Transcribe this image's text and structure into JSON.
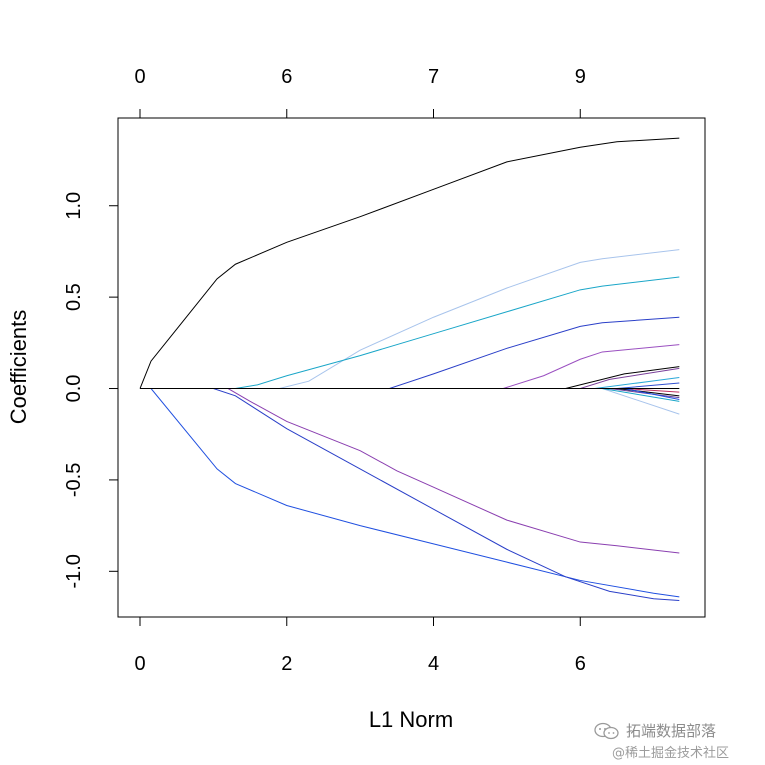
{
  "chart_data": {
    "type": "line",
    "title": "",
    "xlabel": "L1 Norm",
    "ylabel": "Coefficients",
    "xlim": [
      -0.3,
      7.7
    ],
    "ylim": [
      -1.25,
      1.48
    ],
    "x_ticks": [
      0,
      2,
      4,
      6
    ],
    "x_tick_labels": [
      "0",
      "2",
      "4",
      "6"
    ],
    "y_ticks": [
      -1.0,
      -0.5,
      0.0,
      0.5,
      1.0
    ],
    "y_tick_labels": [
      "-1.0",
      "-0.5",
      "0.0",
      "0.5",
      "1.0"
    ],
    "top_axis_ticks": [
      0,
      2,
      4,
      6
    ],
    "top_axis_labels": [
      "0",
      "6",
      "7",
      "9"
    ],
    "grid": false,
    "legend": "none",
    "series": [
      {
        "color": "#000000",
        "points": [
          [
            0,
            0
          ],
          [
            0.15,
            0.15
          ],
          [
            0.55,
            0.35
          ],
          [
            1.05,
            0.6
          ],
          [
            1.3,
            0.68
          ],
          [
            2.0,
            0.8
          ],
          [
            3.0,
            0.94
          ],
          [
            4.0,
            1.09
          ],
          [
            5.0,
            1.24
          ],
          [
            6.0,
            1.32
          ],
          [
            6.5,
            1.35
          ],
          [
            7.35,
            1.37
          ]
        ]
      },
      {
        "color": "#2050e0",
        "points": [
          [
            0,
            0
          ],
          [
            0.15,
            0
          ],
          [
            1.05,
            -0.44
          ],
          [
            1.3,
            -0.52
          ],
          [
            2.0,
            -0.64
          ],
          [
            3.0,
            -0.75
          ],
          [
            4.0,
            -0.85
          ],
          [
            5.0,
            -0.95
          ],
          [
            6.0,
            -1.05
          ],
          [
            7.0,
            -1.12
          ],
          [
            7.35,
            -1.14
          ]
        ]
      },
      {
        "color": "#2a3fc8",
        "points": [
          [
            0,
            0
          ],
          [
            1.0,
            0
          ],
          [
            1.3,
            -0.04
          ],
          [
            2.0,
            -0.22
          ],
          [
            3.0,
            -0.44
          ],
          [
            4.0,
            -0.66
          ],
          [
            5.0,
            -0.88
          ],
          [
            5.8,
            -1.03
          ],
          [
            6.4,
            -1.11
          ],
          [
            7.0,
            -1.15
          ],
          [
            7.35,
            -1.16
          ]
        ]
      },
      {
        "color": "#8a3fb0",
        "points": [
          [
            0,
            0
          ],
          [
            1.2,
            0
          ],
          [
            1.5,
            -0.07
          ],
          [
            2.0,
            -0.18
          ],
          [
            3.0,
            -0.34
          ],
          [
            3.5,
            -0.45
          ],
          [
            4.0,
            -0.54
          ],
          [
            5.0,
            -0.72
          ],
          [
            6.0,
            -0.84
          ],
          [
            6.5,
            -0.86
          ],
          [
            7.35,
            -0.9
          ]
        ]
      },
      {
        "color": "#a8c4ec",
        "points": [
          [
            0,
            0
          ],
          [
            1.9,
            0
          ],
          [
            2.3,
            0.04
          ],
          [
            3.0,
            0.21
          ],
          [
            4.0,
            0.39
          ],
          [
            5.0,
            0.55
          ],
          [
            6.0,
            0.69
          ],
          [
            6.3,
            0.71
          ],
          [
            7.35,
            0.76
          ]
        ]
      },
      {
        "color": "#1aa6c8",
        "points": [
          [
            0,
            0
          ],
          [
            1.3,
            0
          ],
          [
            1.6,
            0.02
          ],
          [
            2.0,
            0.07
          ],
          [
            3.0,
            0.18
          ],
          [
            4.0,
            0.3
          ],
          [
            5.0,
            0.42
          ],
          [
            6.0,
            0.54
          ],
          [
            6.3,
            0.56
          ],
          [
            7.35,
            0.61
          ]
        ]
      },
      {
        "color": "#2a3fc8",
        "points": [
          [
            0,
            0
          ],
          [
            3.4,
            0
          ],
          [
            4.0,
            0.08
          ],
          [
            5.0,
            0.22
          ],
          [
            6.0,
            0.34
          ],
          [
            6.3,
            0.36
          ],
          [
            7.35,
            0.39
          ]
        ]
      },
      {
        "color": "#9a4fc0",
        "points": [
          [
            0,
            0
          ],
          [
            4.95,
            0
          ],
          [
            5.5,
            0.07
          ],
          [
            6.0,
            0.16
          ],
          [
            6.3,
            0.2
          ],
          [
            7.35,
            0.24
          ]
        ]
      },
      {
        "color": "#000000",
        "points": [
          [
            0,
            0
          ],
          [
            5.8,
            0
          ],
          [
            6.1,
            0.03
          ],
          [
            6.6,
            0.08
          ],
          [
            7.35,
            0.12
          ]
        ]
      },
      {
        "color": "#7a3f9a",
        "points": [
          [
            0,
            0
          ],
          [
            6.0,
            0
          ],
          [
            6.4,
            0.05
          ],
          [
            7.35,
            0.11
          ]
        ]
      },
      {
        "color": "#2aa8d8",
        "points": [
          [
            0,
            0
          ],
          [
            6.2,
            0
          ],
          [
            7.35,
            0.06
          ]
        ]
      },
      {
        "color": "#3050d0",
        "points": [
          [
            0,
            0
          ],
          [
            6.5,
            0
          ],
          [
            7.35,
            0.03
          ]
        ]
      },
      {
        "color": "#a8c4ec",
        "points": [
          [
            0,
            0
          ],
          [
            6.3,
            0
          ],
          [
            7.35,
            -0.14
          ]
        ]
      },
      {
        "color": "#1aa6c8",
        "points": [
          [
            0,
            0
          ],
          [
            6.3,
            0
          ],
          [
            7.35,
            -0.07
          ]
        ]
      },
      {
        "color": "#6a3fa0",
        "points": [
          [
            0,
            0
          ],
          [
            6.4,
            0
          ],
          [
            7.35,
            -0.05
          ]
        ]
      },
      {
        "color": "#000000",
        "points": [
          [
            0,
            0
          ],
          [
            6.5,
            0
          ],
          [
            7.35,
            -0.04
          ]
        ]
      },
      {
        "color": "#c03060",
        "points": [
          [
            0,
            0
          ],
          [
            6.6,
            0
          ],
          [
            7.35,
            -0.02
          ]
        ]
      },
      {
        "color": "#2050e0",
        "points": [
          [
            0,
            0
          ],
          [
            6.6,
            0
          ],
          [
            7.35,
            -0.06
          ]
        ]
      },
      {
        "color": "#000000",
        "points": [
          [
            0,
            0
          ],
          [
            7.35,
            0
          ]
        ]
      }
    ]
  },
  "watermark": {
    "line1": "拓端数据部落",
    "line2": "@稀土掘金技术社区"
  },
  "icon": "wechat-official-account-icon"
}
